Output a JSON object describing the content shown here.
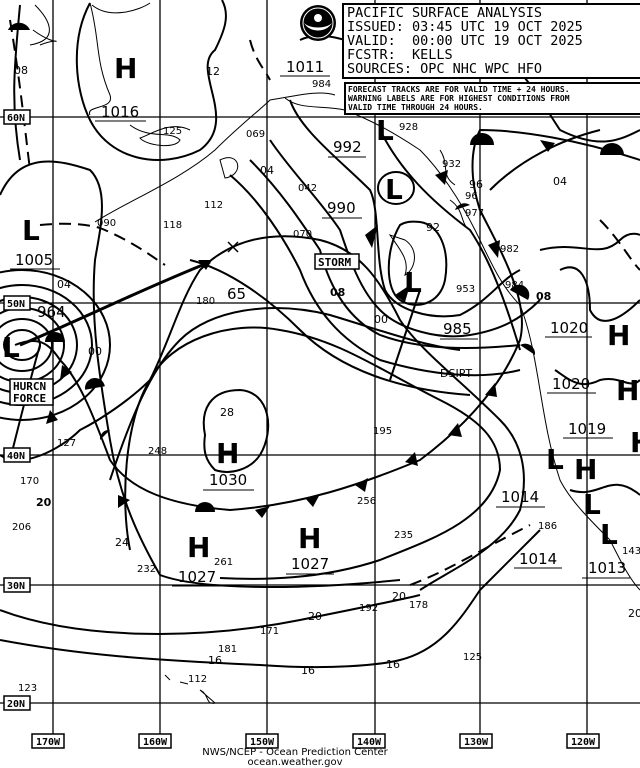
{
  "header": {
    "title": "PACIFIC SURFACE ANALYSIS",
    "issued": "ISSUED: 03:45 UTC 19 OCT 2025",
    "valid": "VALID:  00:00 UTC 19 OCT 2025",
    "forecaster": "FCSTR:  KELLS",
    "sources": "SOURCES: OPC NHC WPC HFO"
  },
  "note": {
    "lines": [
      "FORECAST TRACKS ARE FOR VALID TIME + 24 HOURS.",
      "WARNING LABELS ARE FOR HIGHEST CONDITIONS FROM",
      "VALID TIME THROUGH 24 HOURS."
    ]
  },
  "logo": {
    "name": "noaa-logo",
    "text": "NOAA"
  },
  "credit": {
    "line1": "NWS/NCEP - Ocean Prediction Center",
    "line2": "ocean.weather.gov"
  },
  "grid": {
    "lon_labels": [
      "170W",
      "160W",
      "150W",
      "140W",
      "130W",
      "120W"
    ],
    "lat_labels": [
      "60N",
      "50N",
      "40N",
      "30N",
      "20N"
    ]
  },
  "centers": {
    "highs": [
      "H",
      "H",
      "H",
      "H",
      "H",
      "H",
      "H",
      "H"
    ],
    "lows": [
      "L",
      "L",
      "L",
      "L",
      "L",
      "L",
      "L",
      "L"
    ]
  },
  "pressure_labels": {
    "main": [
      "1016",
      "1005",
      "964",
      "1011",
      "992",
      "990",
      "985",
      "1020",
      "1020",
      "1019",
      "1030",
      "1027",
      "1027",
      "1014",
      "1014",
      "1013"
    ],
    "isobars": [
      "08",
      "12",
      "04",
      "04",
      "65",
      "00",
      "08",
      "08",
      "92",
      "96",
      "04",
      "00",
      "28",
      "20",
      "24",
      "20",
      "20",
      "16",
      "16",
      "20",
      "16"
    ]
  },
  "warnings": {
    "storm": "STORM",
    "hurricane_force": [
      "HURCN",
      "FORCE"
    ],
    "dissipating": "DSIPT"
  },
  "observations": [
    "984",
    "125",
    "069",
    "042",
    "070",
    "112",
    "118",
    "090",
    "180",
    "928",
    "932",
    "96",
    "977",
    "982",
    "953",
    "984",
    "127",
    "170",
    "206",
    "248",
    "195",
    "256",
    "235",
    "232",
    "261",
    "192",
    "178",
    "171",
    "181",
    "112",
    "123",
    "125",
    "186",
    "143"
  ],
  "colors": {
    "ink": "#000000",
    "background": "#ffffff"
  }
}
